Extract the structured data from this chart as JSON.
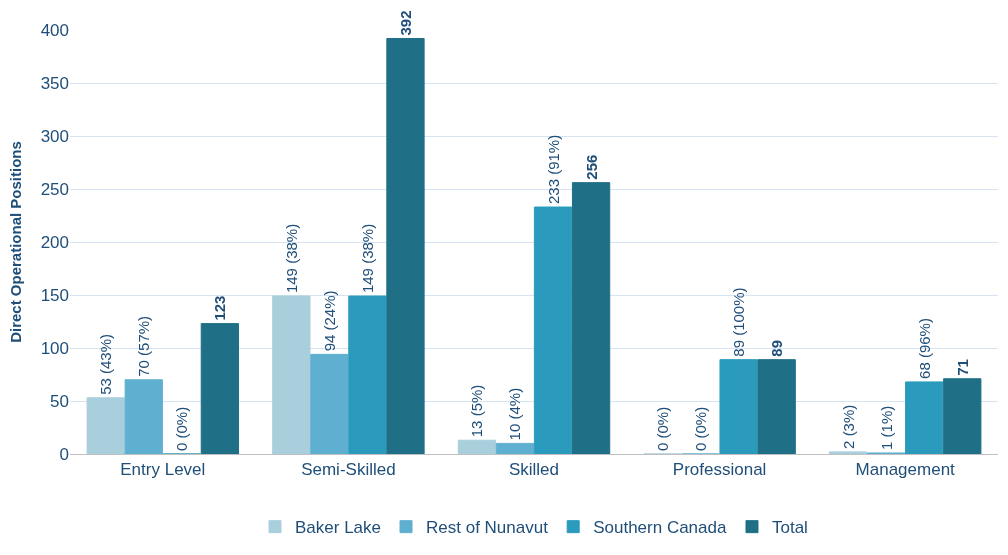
{
  "chart_data": {
    "type": "bar",
    "ylabel": "Direct Operational Positions",
    "categories": [
      "Entry Level",
      "Semi-Skilled",
      "Skilled",
      "Professional",
      "Management"
    ],
    "series": [
      {
        "name": "Baker Lake",
        "color": "#a9cfdc",
        "values": [
          53,
          149,
          13,
          0,
          2
        ],
        "value_labels": [
          "53 (43%)",
          "149 (38%)",
          "13 (5%)",
          "0 (0%)",
          "2 (3%)"
        ]
      },
      {
        "name": "Rest of Nunavut",
        "color": "#5fb0d0",
        "values": [
          70,
          94,
          10,
          0,
          1
        ],
        "value_labels": [
          "70 (57%)",
          "94 (24%)",
          "10 (4%)",
          "0 (0%)",
          "1 (1%)"
        ]
      },
      {
        "name": "Southern Canada",
        "color": "#2a9bbd",
        "values": [
          0,
          149,
          233,
          89,
          68
        ],
        "value_labels": [
          "0 (0%)",
          "149 (38%)",
          "233 (91%)",
          "89 (100%)",
          "68 (96%)"
        ]
      },
      {
        "name": "Total",
        "color": "#1f6f86",
        "values": [
          123,
          392,
          256,
          89,
          71
        ],
        "value_labels": [
          "123",
          "392",
          "256",
          "89",
          "71"
        ]
      }
    ],
    "ylim": [
      0,
      400
    ],
    "yticks": [
      0,
      50,
      100,
      150,
      200,
      250,
      300,
      350,
      400
    ],
    "grid": "y",
    "legend": "bottom"
  }
}
